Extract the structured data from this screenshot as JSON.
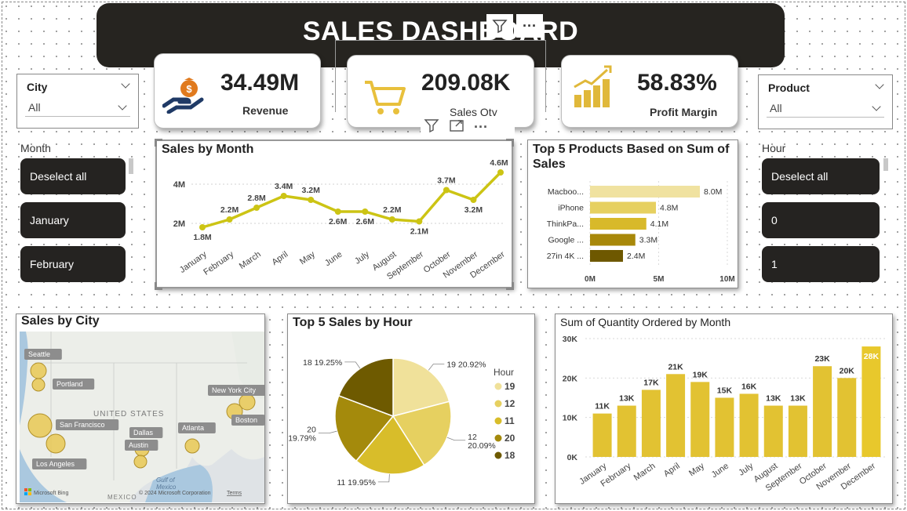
{
  "title": "SALES DASHBOARD",
  "city_slicer": {
    "label": "City",
    "value": "All"
  },
  "product_slicer": {
    "label": "Product",
    "value": "All"
  },
  "kpis": {
    "revenue": {
      "value": "34.49M",
      "label": "Revenue"
    },
    "sales_qty": {
      "value": "209.08K",
      "label": "Sales Qty"
    },
    "profit_margin": {
      "value": "58.83%",
      "label": "Profit Margin"
    }
  },
  "month_list": {
    "title": "Month",
    "items": [
      "Deselect all",
      "January",
      "February"
    ]
  },
  "hour_list": {
    "title": "Hour",
    "items": [
      "Deselect all",
      "0",
      "1"
    ]
  },
  "icons": [
    "money-hand-icon",
    "cart-icon",
    "growth-bars-icon",
    "filter-icon",
    "more-options-icon",
    "focus-mode-icon"
  ],
  "colors": {
    "accent": "#ccc414",
    "gold": "#e2c232",
    "dark": "#262420"
  },
  "sales_by_month": {
    "title": "Sales by Month",
    "chart_data": {
      "type": "line",
      "categories": [
        "January",
        "February",
        "March",
        "April",
        "May",
        "June",
        "July",
        "August",
        "September",
        "October",
        "November",
        "December"
      ],
      "values": [
        1.8,
        2.2,
        2.8,
        3.4,
        3.2,
        2.6,
        2.6,
        2.2,
        2.1,
        3.7,
        3.2,
        4.6
      ],
      "labels": [
        "1.8M",
        "2.2M",
        "2.8M",
        "3.4M",
        "3.2M",
        "2.6M",
        "2.6M",
        "2.2M",
        "2.1M",
        "3.7M",
        "3.2M",
        "4.6M"
      ],
      "yticks": [
        "2M",
        "4M"
      ],
      "ylim": [
        1.0,
        5.0
      ],
      "color": "#ccc414"
    }
  },
  "top_products": {
    "title": "Top 5 Products Based on Sum of Sales",
    "chart_data": {
      "type": "bar",
      "orientation": "horizontal",
      "categories": [
        "Macboo...",
        "iPhone",
        "ThinkPa...",
        "Google ...",
        "27in 4K ..."
      ],
      "values": [
        8.0,
        4.8,
        4.1,
        3.3,
        2.4
      ],
      "labels": [
        "8.0M",
        "4.8M",
        "4.1M",
        "3.3M",
        "2.4M"
      ],
      "colors": [
        "#f0e2a0",
        "#e6d060",
        "#d8b92a",
        "#a8880a",
        "#6e5800"
      ],
      "xticks": [
        "0M",
        "5M",
        "10M"
      ],
      "xlim": [
        0,
        10
      ]
    }
  },
  "sales_by_city": {
    "title": "Sales by City",
    "cities": [
      "Seattle",
      "Portland",
      "San Francisco",
      "Los Angeles",
      "Dallas",
      "Austin",
      "Atlanta",
      "New York City",
      "Boston"
    ],
    "map_labels": {
      "country": "UNITED STATES",
      "gulf": "Gulf of\nMexico",
      "mexico": "MEXICO",
      "attribution": "© 2024 Microsoft Corporation",
      "terms": "Terms",
      "brand": "Microsoft Bing"
    }
  },
  "top_hours": {
    "title": "Top 5 Sales by Hour",
    "legend_title": "Hour",
    "chart_data": {
      "type": "pie",
      "labels": [
        "19",
        "12",
        "11",
        "20",
        "18"
      ],
      "values": [
        20.92,
        20.09,
        19.95,
        19.79,
        19.25
      ],
      "label_text": [
        "19 20.92%",
        "12\n20.09%",
        "11 19.95%",
        "20\n19.79%",
        "18 19.25%"
      ],
      "colors": [
        "#f0e19a",
        "#e6d060",
        "#d8bd2a",
        "#a48a0c",
        "#6e5a00"
      ]
    }
  },
  "qty_by_month": {
    "title": "Sum of Quantity Ordered by Month",
    "chart_data": {
      "type": "bar",
      "categories": [
        "January",
        "February",
        "March",
        "April",
        "May",
        "June",
        "July",
        "August",
        "September",
        "October",
        "November",
        "December"
      ],
      "values": [
        11,
        13,
        17,
        21,
        19,
        15,
        16,
        13,
        13,
        23,
        20,
        28
      ],
      "labels": [
        "11K",
        "13K",
        "17K",
        "21K",
        "19K",
        "15K",
        "16K",
        "13K",
        "13K",
        "23K",
        "20K",
        "28K"
      ],
      "yticks": [
        "0K",
        "10K",
        "20K",
        "30K"
      ],
      "ylim": [
        0,
        30
      ],
      "color": "#e2c232",
      "highlight_color": "#e8c82c"
    }
  }
}
